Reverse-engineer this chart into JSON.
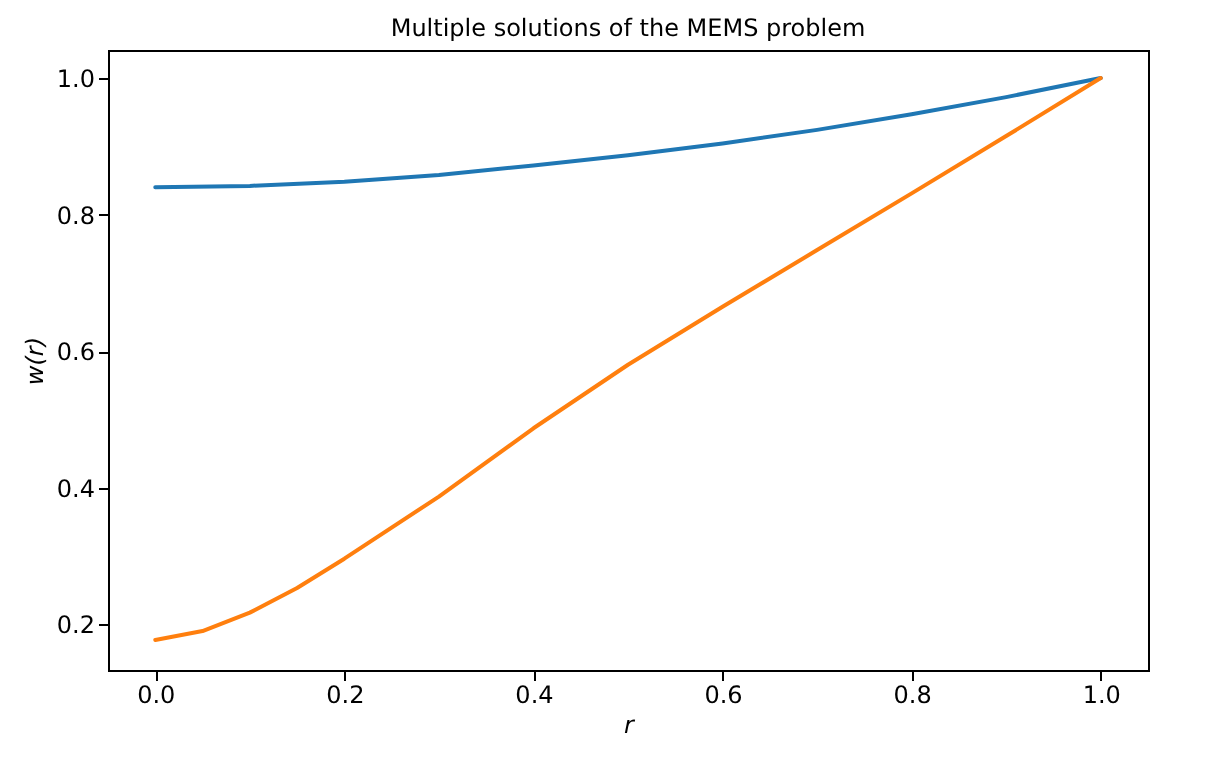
{
  "chart_data": {
    "type": "line",
    "title": "Multiple solutions of the MEMS problem",
    "xlabel": "r",
    "ylabel": "w(r)",
    "xlim": [
      -0.05,
      1.05
    ],
    "xticks": [
      {
        "value": 0,
        "label": "0.0"
      },
      0.2,
      0.4,
      0.6,
      0.8,
      {
        "value": 1,
        "label": "1.0"
      }
    ],
    "ylim": [
      0.133,
      1.041
    ],
    "yticks": [
      0.2,
      0.4,
      0.6,
      0.8,
      {
        "value": 1,
        "label": "1.0"
      }
    ],
    "grid": false,
    "marker": "none",
    "line_style": "solid",
    "series": [
      {
        "color": "#1f77b4",
        "x": [
          0,
          0.1,
          0.2,
          0.3,
          0.4,
          0.5,
          0.6,
          0.7,
          0.8,
          0.9,
          1.0
        ],
        "values": [
          0.84,
          0.842,
          0.848,
          0.858,
          0.872,
          0.887,
          0.904,
          0.924,
          0.947,
          0.972,
          1.0
        ]
      },
      {
        "color": "#ff7f0e",
        "x": [
          0,
          0.05,
          0.1,
          0.15,
          0.2,
          0.3,
          0.4,
          0.5,
          0.6,
          0.7,
          0.8,
          0.9,
          1.0
        ],
        "values": [
          0.177,
          0.19,
          0.217,
          0.253,
          0.296,
          0.387,
          0.487,
          0.58,
          0.665,
          0.748,
          0.831,
          0.915,
          1.0
        ]
      }
    ]
  }
}
